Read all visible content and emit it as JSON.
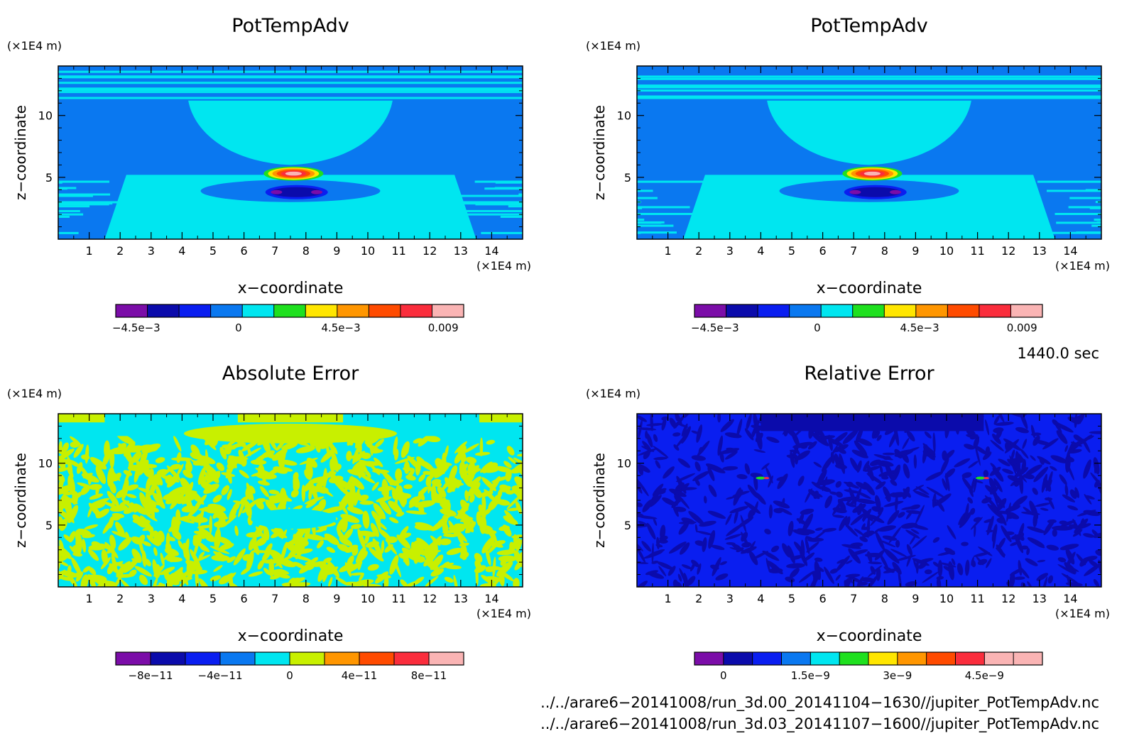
{
  "chart_data": [
    {
      "type": "heatmap",
      "title": "PotTempAdv",
      "xlabel": "x−coordinate",
      "ylabel": "z−coordinate",
      "x_unit": "(×1E4 m)",
      "z_unit": "(×1E4 m)",
      "xlim": [
        0,
        15
      ],
      "ylim": [
        0,
        14
      ],
      "x_ticks": [
        "1",
        "2",
        "3",
        "4",
        "5",
        "6",
        "7",
        "8",
        "9",
        "10",
        "11",
        "12",
        "13",
        "14"
      ],
      "y_ticks": [
        "5",
        "10"
      ],
      "colorbar": {
        "colors": [
          "#7b0da8",
          "#0b0bab",
          "#0a1ef0",
          "#0a78f0",
          "#00e6f0",
          "#1fe01f",
          "#ffe600",
          "#ff9600",
          "#ff4b00",
          "#fa2d3c",
          "#fab4b4"
        ],
        "labels": [
          "−4.5e−3",
          "0",
          "4.5e−3",
          "0.009"
        ],
        "range": [
          -0.0054,
          0.0099
        ],
        "label_values": [
          -0.0045,
          0,
          0.0045,
          0.009
        ]
      },
      "field": {
        "background": "#0a78f0",
        "features": [
          {
            "name": "upper mid-level band",
            "x": [
              4.2,
              10.8
            ],
            "z": [
              7.5,
              11.2
            ],
            "color": "#00e6f0"
          },
          {
            "name": "lower layer",
            "x": [
              1.5,
              13.5
            ],
            "z": [
              0,
              5
            ],
            "color": "#00e6f0"
          },
          {
            "name": "warm anomaly",
            "x": [
              7.6
            ],
            "z": [
              5.3
            ],
            "color": "#ff4b00"
          },
          {
            "name": "cold anomaly",
            "x": [
              7.0,
              8.4
            ],
            "z": [
              3.8
            ],
            "color": "#0b0bab"
          }
        ]
      }
    },
    {
      "type": "heatmap",
      "title": "PotTempAdv",
      "xlabel": "x−coordinate",
      "ylabel": "z−coordinate",
      "x_unit": "(×1E4 m)",
      "z_unit": "(×1E4 m)",
      "xlim": [
        0,
        15
      ],
      "ylim": [
        0,
        14
      ],
      "x_ticks": [
        "1",
        "2",
        "3",
        "4",
        "5",
        "6",
        "7",
        "8",
        "9",
        "10",
        "11",
        "12",
        "13",
        "14"
      ],
      "y_ticks": [
        "5",
        "10"
      ],
      "colorbar": {
        "colors": [
          "#7b0da8",
          "#0b0bab",
          "#0a1ef0",
          "#0a78f0",
          "#00e6f0",
          "#1fe01f",
          "#ffe600",
          "#ff9600",
          "#ff4b00",
          "#fa2d3c",
          "#fab4b4"
        ],
        "labels": [
          "−4.5e−3",
          "0",
          "4.5e−3",
          "0.009"
        ],
        "range": [
          -0.0054,
          0.0099
        ],
        "label_values": [
          -0.0045,
          0,
          0.0045,
          0.009
        ]
      },
      "field": {
        "background": "#0a78f0",
        "features": [
          {
            "name": "upper mid-level band",
            "x": [
              4.2,
              10.8
            ],
            "z": [
              7.5,
              11.2
            ],
            "color": "#00e6f0"
          },
          {
            "name": "lower layer",
            "x": [
              1.5,
              13.5
            ],
            "z": [
              0,
              5
            ],
            "color": "#00e6f0"
          },
          {
            "name": "warm anomaly",
            "x": [
              7.6
            ],
            "z": [
              5.3
            ],
            "color": "#ff4b00"
          },
          {
            "name": "cold anomaly",
            "x": [
              7.0,
              8.4
            ],
            "z": [
              3.8
            ],
            "color": "#0b0bab"
          }
        ]
      }
    },
    {
      "type": "heatmap",
      "title": "Absolute Error",
      "xlabel": "x−coordinate",
      "ylabel": "z−coordinate",
      "x_unit": "(×1E4 m)",
      "z_unit": "(×1E4 m)",
      "xlim": [
        0,
        15
      ],
      "ylim": [
        0,
        14
      ],
      "x_ticks": [
        "1",
        "2",
        "3",
        "4",
        "5",
        "6",
        "7",
        "8",
        "9",
        "10",
        "11",
        "12",
        "13",
        "14"
      ],
      "y_ticks": [
        "5",
        "10"
      ],
      "colorbar": {
        "colors": [
          "#7b0da8",
          "#0b0bab",
          "#0a1ef0",
          "#0a78f0",
          "#00e6f0",
          "#c8f000",
          "#ff9600",
          "#ff4b00",
          "#fa2d3c",
          "#fab4b4"
        ],
        "labels": [
          "−8e−11",
          "−4e−11",
          "0",
          "4e−11",
          "8e−11"
        ],
        "range": [
          -1e-10,
          1e-10
        ],
        "label_values": [
          -8e-11,
          -4e-11,
          0,
          4e-11,
          8e-11
        ]
      },
      "field": {
        "background": "#00e6f0",
        "noise_color": "#c8f000",
        "features": [
          {
            "name": "top band",
            "x": [
              0,
              15
            ],
            "z": [
              12,
              14
            ],
            "color": "#00e6f0"
          }
        ]
      }
    },
    {
      "type": "heatmap",
      "title": "Relative Error",
      "xlabel": "x−coordinate",
      "ylabel": "z−coordinate",
      "x_unit": "(×1E4 m)",
      "z_unit": "(×1E4 m)",
      "xlim": [
        0,
        15
      ],
      "ylim": [
        0,
        14
      ],
      "x_ticks": [
        "1",
        "2",
        "3",
        "4",
        "5",
        "6",
        "7",
        "8",
        "9",
        "10",
        "11",
        "12",
        "13",
        "14"
      ],
      "y_ticks": [
        "5",
        "10"
      ],
      "colorbar": {
        "colors": [
          "#7b0da8",
          "#0b0bab",
          "#0a1ef0",
          "#0a78f0",
          "#00e6f0",
          "#1fe01f",
          "#ffe600",
          "#ff9600",
          "#ff4b00",
          "#fa2d3c",
          "#fab4b4",
          "#fab4b4"
        ],
        "labels": [
          "0",
          "1.5e−9",
          "3e−9",
          "4.5e−9"
        ],
        "range": [
          -5e-10,
          5.5e-09
        ],
        "label_values": [
          0,
          1.5e-09,
          3e-09,
          4.5e-09
        ]
      },
      "field": {
        "background": "#0a1ef0",
        "noise_color": "#0b0bab",
        "features": [
          {
            "name": "spike left",
            "x": [
              4.0
            ],
            "z": [
              8.8
            ],
            "color": "#1fe01f"
          },
          {
            "name": "spike right",
            "x": [
              11.1
            ],
            "z": [
              8.8
            ],
            "color": "#1fe01f"
          }
        ]
      }
    }
  ],
  "annotations": {
    "time": "1440.0 sec",
    "file1": "../../arare6−20141008/run_3d.00_20141104−1630//jupiter_PotTempAdv.nc",
    "file2": "../../arare6−20141008/run_3d.03_20141107−1600//jupiter_PotTempAdv.nc"
  }
}
